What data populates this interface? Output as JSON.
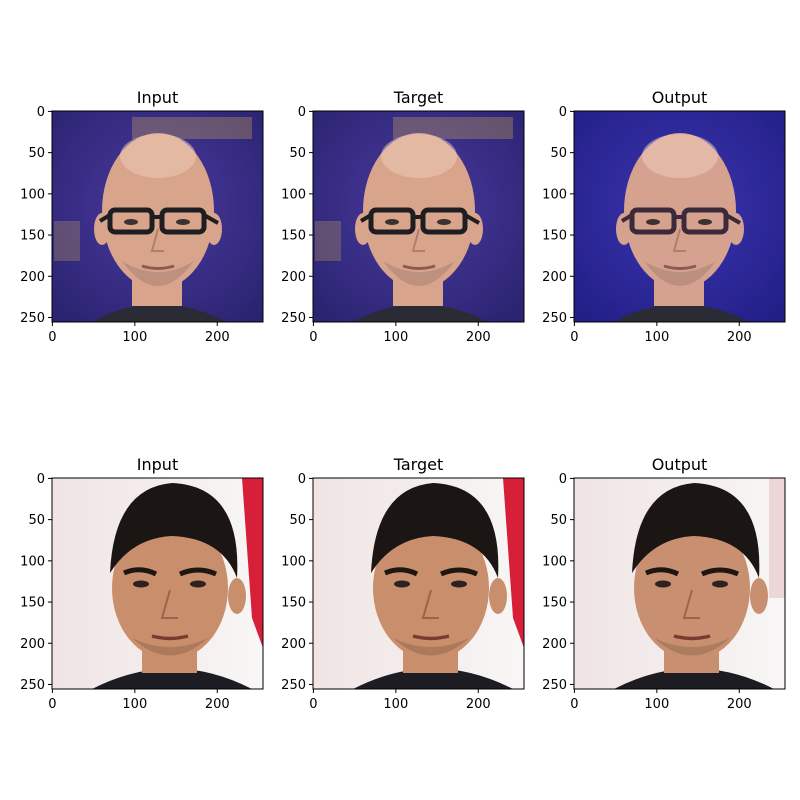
{
  "figure": {
    "panels": [
      {
        "title": "Input",
        "x_ticks": [
          "0",
          "100",
          "200"
        ],
        "y_ticks": [
          "0",
          "50",
          "100",
          "150",
          "200",
          "250"
        ],
        "subject": "bald man with dark-framed glasses",
        "background": "#3a2f8c",
        "skin": "#d9a48c"
      },
      {
        "title": "Target",
        "x_ticks": [
          "0",
          "100",
          "200"
        ],
        "y_ticks": [
          "0",
          "50",
          "100",
          "150",
          "200",
          "250"
        ],
        "subject": "bald man with dark-framed glasses",
        "background": "#3a2f8c",
        "skin": "#d9a48c"
      },
      {
        "title": "Output",
        "x_ticks": [
          "0",
          "100",
          "200"
        ],
        "y_ticks": [
          "0",
          "50",
          "100",
          "150",
          "200",
          "250"
        ],
        "subject": "bald man with dark-framed glasses (generated)",
        "background": "#2c2a9c",
        "skin": "#d6a290"
      },
      {
        "title": "Input",
        "x_ticks": [
          "0",
          "100",
          "200"
        ],
        "y_ticks": [
          "0",
          "50",
          "100",
          "150",
          "200",
          "250"
        ],
        "subject": "young man with short dark hair",
        "background": "#f4f0f0",
        "skin": "#c98e6c"
      },
      {
        "title": "Target",
        "x_ticks": [
          "0",
          "100",
          "200"
        ],
        "y_ticks": [
          "0",
          "50",
          "100",
          "150",
          "200",
          "250"
        ],
        "subject": "young man with short dark hair",
        "background": "#f4f0f0",
        "skin": "#c98e6c"
      },
      {
        "title": "Output",
        "x_ticks": [
          "0",
          "100",
          "200"
        ],
        "y_ticks": [
          "0",
          "50",
          "100",
          "150",
          "200",
          "250"
        ],
        "subject": "young man with short dark hair (generated)",
        "background": "#ede6e6",
        "skin": "#c89070"
      }
    ]
  }
}
